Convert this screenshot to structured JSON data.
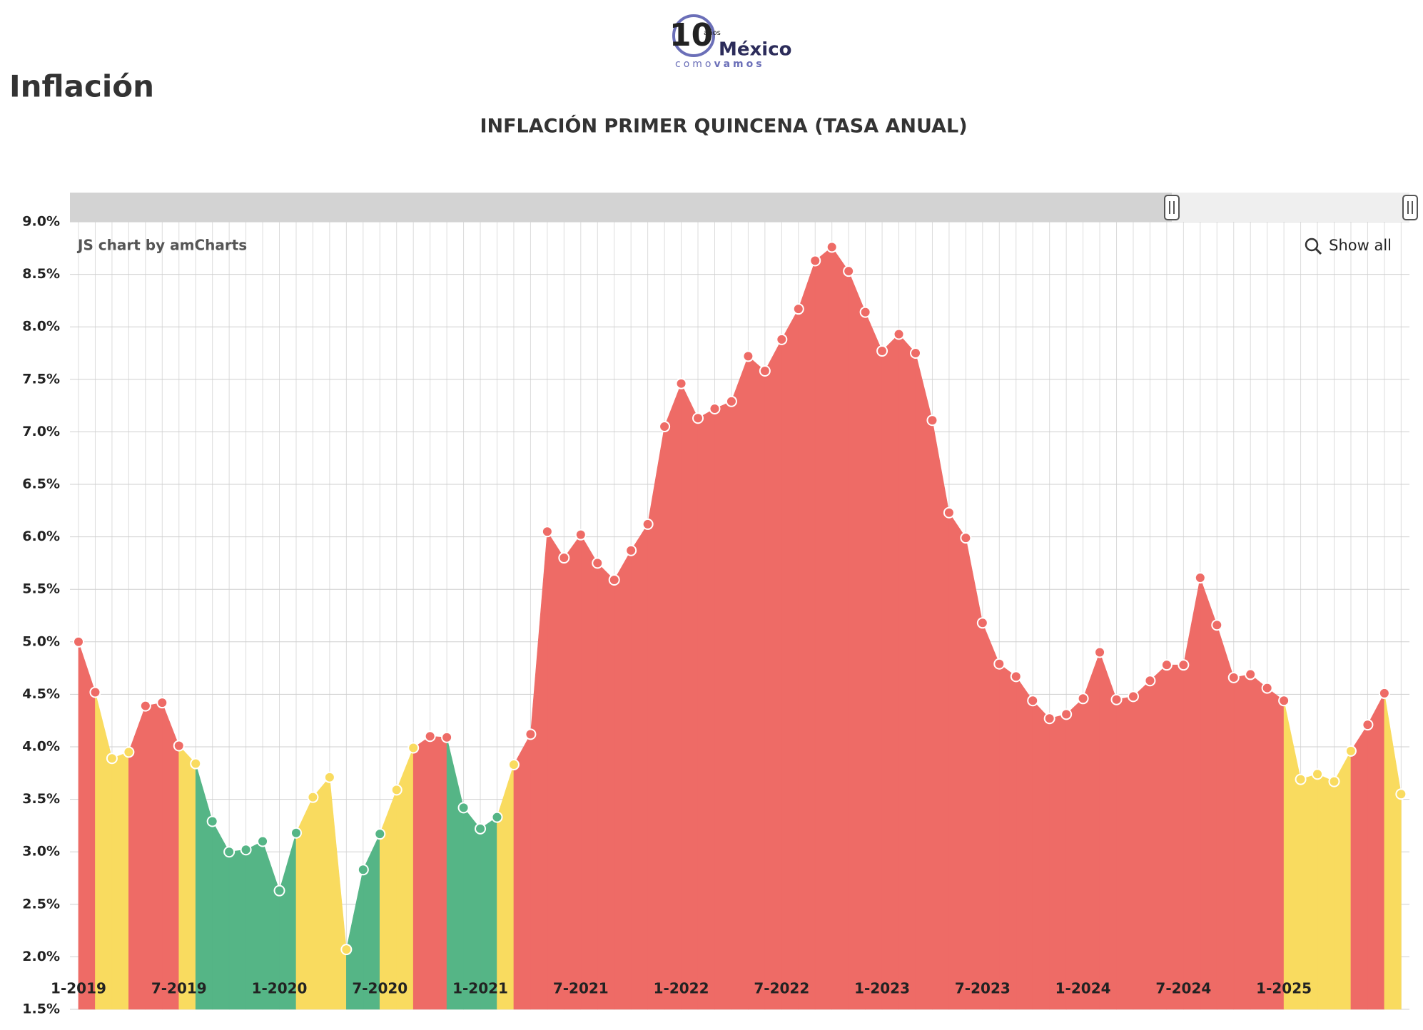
{
  "page": {
    "heading": "Inflación",
    "logo": {
      "number": "10",
      "small": "años",
      "name": "México",
      "tag_a": "como",
      "tag_b": "vamos"
    },
    "credit": "JS chart by amCharts",
    "show_all": "Show all"
  },
  "chart_data": {
    "type": "area",
    "title": "INFLACIÓN PRIMER QUINCENA (TASA ANUAL)",
    "categories": [
      "1-2019",
      null,
      null,
      null,
      null,
      null,
      "7-2019",
      null,
      null,
      null,
      null,
      null,
      "1-2020",
      null,
      null,
      null,
      null,
      null,
      "7-2020",
      null,
      null,
      null,
      null,
      null,
      "1-2021",
      null,
      null,
      null,
      null,
      null,
      "7-2021",
      null,
      null,
      null,
      null,
      null,
      "1-2022",
      null,
      null,
      null,
      null,
      null,
      "7-2022",
      null,
      null,
      null,
      null,
      null,
      "1-2023",
      null,
      null,
      null,
      null,
      null,
      "7-2023",
      null,
      null,
      null,
      null,
      null,
      "1-2024",
      null,
      null,
      null,
      null,
      null,
      "7-2024",
      null,
      null,
      null,
      null,
      null,
      "1-2025",
      null,
      null,
      null,
      null,
      null,
      null,
      null
    ],
    "values": [
      5.0,
      4.52,
      3.89,
      3.95,
      4.39,
      4.42,
      4.01,
      3.84,
      3.29,
      3.0,
      3.02,
      3.1,
      2.63,
      3.18,
      3.52,
      3.71,
      2.07,
      2.83,
      3.17,
      3.59,
      3.99,
      4.1,
      4.09,
      3.42,
      3.22,
      3.33,
      3.83,
      4.12,
      6.05,
      5.8,
      6.02,
      5.75,
      5.59,
      5.87,
      6.12,
      7.05,
      7.46,
      7.13,
      7.22,
      7.29,
      7.72,
      7.58,
      7.88,
      8.17,
      8.63,
      8.76,
      8.53,
      8.14,
      7.77,
      7.93,
      7.75,
      7.11,
      6.23,
      5.99,
      5.18,
      4.79,
      4.67,
      4.44,
      4.27,
      4.31,
      4.46,
      4.9,
      4.45,
      4.48,
      4.63,
      4.78,
      4.78,
      5.61,
      5.16,
      4.66,
      4.69,
      4.56,
      4.44,
      3.69,
      3.74,
      3.67,
      3.96,
      4.21,
      4.51,
      3.55
    ],
    "colors": [
      "#ee6b66",
      "#ee6b66",
      "#f9db5f",
      "#f9db5f",
      "#ee6b66",
      "#ee6b66",
      "#ee6b66",
      "#f9db5f",
      "#55b586",
      "#55b586",
      "#55b586",
      "#55b586",
      "#55b586",
      "#55b586",
      "#f9db5f",
      "#f9db5f",
      "#f9db5f",
      "#55b586",
      "#55b586",
      "#f9db5f",
      "#f9db5f",
      "#ee6b66",
      "#ee6b66",
      "#55b586",
      "#55b586",
      "#55b586",
      "#f9db5f",
      "#ee6b66",
      "#ee6b66",
      "#ee6b66",
      "#ee6b66",
      "#ee6b66",
      "#ee6b66",
      "#ee6b66",
      "#ee6b66",
      "#ee6b66",
      "#ee6b66",
      "#ee6b66",
      "#ee6b66",
      "#ee6b66",
      "#ee6b66",
      "#ee6b66",
      "#ee6b66",
      "#ee6b66",
      "#ee6b66",
      "#ee6b66",
      "#ee6b66",
      "#ee6b66",
      "#ee6b66",
      "#ee6b66",
      "#ee6b66",
      "#ee6b66",
      "#ee6b66",
      "#ee6b66",
      "#ee6b66",
      "#ee6b66",
      "#ee6b66",
      "#ee6b66",
      "#ee6b66",
      "#ee6b66",
      "#ee6b66",
      "#ee6b66",
      "#ee6b66",
      "#ee6b66",
      "#ee6b66",
      "#ee6b66",
      "#ee6b66",
      "#ee6b66",
      "#ee6b66",
      "#ee6b66",
      "#ee6b66",
      "#ee6b66",
      "#ee6b66",
      "#f9db5f",
      "#f9db5f",
      "#f9db5f",
      "#f9db5f",
      "#ee6b66",
      "#ee6b66",
      "#f9db5f"
    ],
    "ylim": [
      1.5,
      9.0
    ],
    "yticks": [
      {
        "value": 1.5,
        "label": "1.5%"
      },
      {
        "value": 2.0,
        "label": "2.0%"
      },
      {
        "value": 2.5,
        "label": "2.5%"
      },
      {
        "value": 3.0,
        "label": "3.0%"
      },
      {
        "value": 3.5,
        "label": "3.5%"
      },
      {
        "value": 4.0,
        "label": "4.0%"
      },
      {
        "value": 4.5,
        "label": "4.5%"
      },
      {
        "value": 5.0,
        "label": "5.0%"
      },
      {
        "value": 5.5,
        "label": "5.5%"
      },
      {
        "value": 6.0,
        "label": "6.0%"
      },
      {
        "value": 6.5,
        "label": "6.5%"
      },
      {
        "value": 7.0,
        "label": "7.0%"
      },
      {
        "value": 7.5,
        "label": "7.5%"
      },
      {
        "value": 8.0,
        "label": "8.0%"
      },
      {
        "value": 8.5,
        "label": "8.5%"
      },
      {
        "value": 9.0,
        "label": "9.0%"
      }
    ],
    "grid": true
  }
}
